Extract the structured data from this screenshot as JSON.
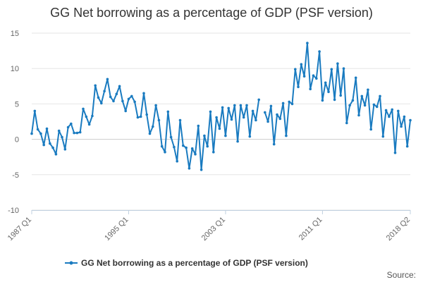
{
  "chart_data": {
    "type": "line",
    "title": "GG Net borrowing as a percentage of GDP (PSF version)",
    "xlabel": "",
    "ylabel": "",
    "ylim": [
      -10,
      15
    ],
    "yticks": [
      "15",
      "10",
      "5",
      "0",
      "-5",
      "-10"
    ],
    "xticks": [
      {
        "label": "1987 Q1",
        "index": 0
      },
      {
        "label": "1995 Q1",
        "index": 32
      },
      {
        "label": "2003 Q1",
        "index": 64
      },
      {
        "label": "2011 Q1",
        "index": 96
      },
      {
        "label": "2018 Q2",
        "index": 125
      }
    ],
    "grid": true,
    "legend": "bottom",
    "color": "#1a7bc0",
    "x_first": "1987 Q1",
    "x_last": "2018 Q2",
    "series": [
      {
        "name": "GG Net borrowing as a percentage of GDP (PSF version)",
        "values": [
          0.8,
          4.0,
          1.4,
          0.8,
          -0.8,
          1.5,
          -0.6,
          -1.2,
          -2.1,
          1.2,
          0.3,
          -1.4,
          1.7,
          2.2,
          0.9,
          0.9,
          1.0,
          4.3,
          3.2,
          2.1,
          3.3,
          7.6,
          5.9,
          5.1,
          6.8,
          8.5,
          6.0,
          5.4,
          6.4,
          7.5,
          5.4,
          4.0,
          5.7,
          6.1,
          5.3,
          3.1,
          3.2,
          6.5,
          3.5,
          0.8,
          1.8,
          4.8,
          2.7,
          -1.0,
          -1.8,
          3.9,
          0.3,
          -1.1,
          -3.1,
          2.7,
          -0.9,
          -1.2,
          -4.1,
          -1.3,
          -2.1,
          1.9,
          -4.3,
          0.5,
          -1.0,
          3.9,
          -1.8,
          3.1,
          1.5,
          4.5,
          0.5,
          4.4,
          2.8,
          4.8,
          -0.3,
          4.8,
          3.1,
          4.8,
          0.4,
          4.0,
          2.7,
          5.6,
          null,
          3.8,
          2.5,
          4.7,
          -0.7,
          3.5,
          2.9,
          5.1,
          0.5,
          5.3,
          5.0,
          9.9,
          7.4,
          10.6,
          8.9,
          13.6,
          7.1,
          9.0,
          8.6,
          12.4,
          5.5,
          8.0,
          6.7,
          9.9,
          5.6,
          10.7,
          6.2,
          10.0,
          2.3,
          4.8,
          5.5,
          8.7,
          3.4,
          6.1,
          4.8,
          7.0,
          1.4,
          4.9,
          4.6,
          6.1,
          0.4,
          4.1,
          3.2,
          4.2,
          -1.9,
          4.0,
          1.8,
          3.2,
          -1.0,
          2.7
        ]
      }
    ],
    "source_label": "Source:"
  }
}
